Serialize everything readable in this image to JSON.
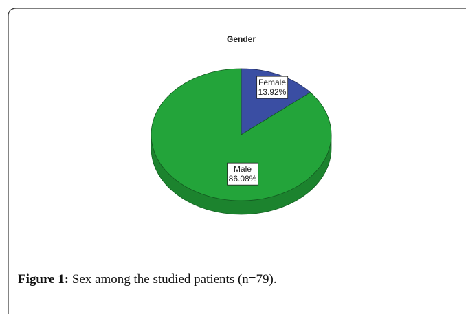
{
  "chart_data": {
    "type": "pie",
    "title": "Gender",
    "categories": [
      "Female",
      "Male"
    ],
    "values": [
      13.92,
      86.08
    ],
    "value_labels": [
      "13.92%",
      "86.08%"
    ],
    "colors": [
      "#3a4ea3",
      "#23a43a"
    ]
  },
  "caption": {
    "label": "Figure 1:",
    "text": "Sex among the studied patients (n=79)."
  }
}
